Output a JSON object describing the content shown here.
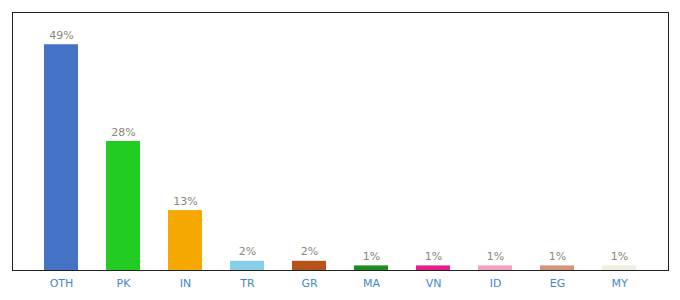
{
  "chart_data": {
    "type": "bar",
    "categories": [
      "OTH",
      "PK",
      "IN",
      "TR",
      "GR",
      "MA",
      "VN",
      "ID",
      "EG",
      "MY"
    ],
    "values": [
      49,
      28,
      13,
      2,
      2,
      1,
      1,
      1,
      1,
      1
    ],
    "value_labels": [
      "49%",
      "28%",
      "13%",
      "2%",
      "2%",
      "1%",
      "1%",
      "1%",
      "1%",
      "1%"
    ],
    "colors": [
      "#4472c4",
      "#22cc22",
      "#f5a800",
      "#87ceeb",
      "#b5531a",
      "#1e8c1e",
      "#e91e8c",
      "#f4a0c0",
      "#d4957a",
      "#f0eedc"
    ],
    "ylim": [
      0,
      56
    ],
    "yticks": [],
    "data_labels": true,
    "tick_labels": "x",
    "grid": false
  }
}
